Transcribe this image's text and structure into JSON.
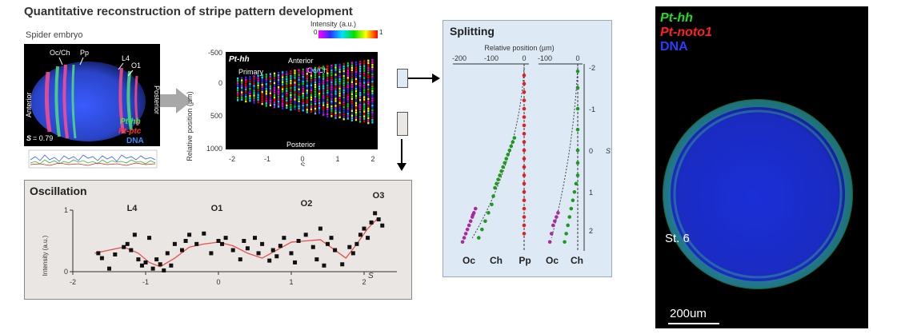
{
  "figure": {
    "title": "Quantitative reconstruction of stripe pattern development"
  },
  "embryo": {
    "label": "Spider embryo",
    "labels": {
      "occh": "Oc/Ch",
      "pp": "Pp",
      "l4": "L4",
      "o1": "O1",
      "anterior": "Anterior",
      "posterior": "Posterior",
      "s_value": "= 0.79",
      "s_symbol": "S"
    },
    "legend": {
      "hh": "Pt-hh",
      "ptc": "Pt-ptc",
      "dna": "DNA"
    }
  },
  "colorbar": {
    "label": "Intensity (a.u.)",
    "min": "0",
    "max": "1"
  },
  "gradient": {
    "label_gene": "Pt-hh",
    "label_primary": "Primary",
    "label_anterior": "Anterior",
    "label_occh": "Oc/Ch",
    "label_posterior": "Posterior",
    "ylabel": "Relative position (µm)",
    "xlabel": "S",
    "yticks": [
      "-500",
      "0",
      "500",
      "1000"
    ],
    "xticks": [
      "-2",
      "-1",
      "0",
      "1",
      "2"
    ]
  },
  "splitting": {
    "title": "Splitting",
    "xlabel": "Relative position (µm)",
    "xticks_left": [
      "-200",
      "-100",
      "0"
    ],
    "xticks_right": [
      "-100",
      "0"
    ],
    "yticks": [
      "-2",
      "-1",
      "0",
      "1",
      "2"
    ],
    "ylabel": "S",
    "bottom_labels_left": [
      "Oc",
      "Ch",
      "Pp"
    ],
    "bottom_labels_right": [
      "Oc",
      "Ch"
    ]
  },
  "oscillation": {
    "title": "Oscillation",
    "ylabel": "Intensity (a.u.)",
    "xlabel": "S",
    "yticks": [
      "0",
      "1"
    ],
    "xticks": [
      "-2",
      "-1",
      "0",
      "1",
      "2"
    ],
    "peak_labels": [
      "L4",
      "O1",
      "O2",
      "O3"
    ]
  },
  "photo": {
    "legend": {
      "hh": "Pt-hh",
      "noto": "Pt-noto1",
      "dna": "DNA"
    },
    "stage": "St. 6",
    "scalebar": "200um"
  },
  "colors": {
    "green": "#22dd22",
    "red": "#ff2020",
    "blue": "#2a3cff",
    "magenta": "#aa2a9c",
    "point_green": "#1f9a1f",
    "point_red": "#e02020",
    "fit_line": "#e8504a"
  },
  "chart_data": [
    {
      "type": "scatter",
      "title": "Oscillation",
      "xlabel": "S",
      "ylabel": "Intensity (a.u.)",
      "xlim": [
        -2,
        2.3
      ],
      "ylim": [
        0,
        1
      ],
      "series": [
        {
          "x": [
            -1.65,
            -1.6,
            -1.5,
            -1.42,
            -1.3,
            -1.25,
            -1.2,
            -1.15,
            -1.1,
            -1.05,
            -1.0,
            -0.95,
            -0.9,
            -0.85,
            -0.8,
            -0.75,
            -0.7,
            -0.65,
            -0.6,
            -0.5,
            -0.45,
            -0.4,
            -0.3,
            -0.2,
            -0.1,
            0.0,
            0.05,
            0.1,
            0.2,
            0.3,
            0.35,
            0.4,
            0.5,
            0.55,
            0.6,
            0.7,
            0.75,
            0.8,
            0.85,
            0.9,
            1.0,
            1.05,
            1.1,
            1.2,
            1.3,
            1.35,
            1.4,
            1.45,
            1.5,
            1.55,
            1.6,
            1.7,
            1.8,
            1.85,
            1.9,
            1.95,
            2.0,
            2.05,
            2.1,
            2.15,
            2.2,
            2.25
          ],
          "y": [
            0.3,
            0.22,
            0.05,
            0.28,
            0.4,
            0.45,
            0.35,
            0.6,
            0.2,
            0.1,
            0.15,
            0.55,
            0.05,
            0.2,
            0.12,
            0.02,
            0.3,
            0.1,
            0.45,
            0.35,
            0.5,
            0.6,
            0.45,
            0.62,
            0.3,
            0.5,
            0.45,
            0.55,
            0.35,
            0.2,
            0.5,
            0.38,
            0.55,
            0.3,
            0.45,
            0.18,
            0.35,
            0.25,
            0.42,
            0.55,
            0.3,
            0.15,
            0.5,
            0.6,
            0.4,
            0.2,
            0.7,
            0.1,
            0.45,
            0.55,
            0.35,
            0.12,
            0.4,
            0.3,
            0.45,
            0.6,
            0.7,
            0.55,
            0.8,
            0.95,
            0.85,
            0.75
          ]
        }
      ],
      "fit_line": {
        "x": [
          -1.7,
          -1.5,
          -1.3,
          -1.1,
          -0.95,
          -0.8,
          -0.6,
          -0.4,
          -0.2,
          0.0,
          0.2,
          0.4,
          0.6,
          0.8,
          1.0,
          1.2,
          1.4,
          1.6,
          1.75,
          1.9,
          2.05,
          2.2
        ],
        "y": [
          0.3,
          0.35,
          0.4,
          0.3,
          0.15,
          0.08,
          0.22,
          0.4,
          0.45,
          0.48,
          0.42,
          0.3,
          0.22,
          0.35,
          0.48,
          0.5,
          0.52,
          0.35,
          0.22,
          0.45,
          0.7,
          0.88
        ]
      }
    },
    {
      "type": "scatter",
      "title": "Splitting",
      "xlabel": "Relative position (µm)",
      "ylabel": "S",
      "ylim": [
        -2,
        2.3
      ],
      "panels": [
        {
          "xlim": [
            -200,
            0
          ],
          "series": [
            {
              "name": "Oc",
              "x": [
                -190,
                -185,
                -180,
                -175,
                -170,
                -165,
                -160,
                -158,
                -155,
                -150
              ],
              "y": [
                2.2,
                2.1,
                2.0,
                1.9,
                1.8,
                1.7,
                1.6,
                1.55,
                1.5,
                1.4
              ]
            },
            {
              "name": "Ch",
              "x": [
                -140,
                -130,
                -120,
                -110,
                -100,
                -95,
                -90,
                -85,
                -80,
                -75,
                -70,
                -65,
                -60,
                -55,
                -50,
                -45,
                -40,
                -35,
                -30
              ],
              "y": [
                2.1,
                1.9,
                1.7,
                1.5,
                1.3,
                1.1,
                0.9,
                0.8,
                0.7,
                0.6,
                0.5,
                0.4,
                0.3,
                0.2,
                0.1,
                0.0,
                -0.1,
                -0.2,
                -0.3
              ]
            },
            {
              "name": "Pp",
              "x": [
                0,
                0,
                0,
                0,
                0,
                0,
                0,
                0,
                0,
                0,
                0,
                0,
                0,
                0,
                0,
                0,
                0,
                0,
                0,
                0
              ],
              "y": [
                -1.8,
                -1.6,
                -1.4,
                -1.2,
                -1.0,
                -0.8,
                -0.6,
                -0.4,
                -0.2,
                0.0,
                0.2,
                0.4,
                0.6,
                0.8,
                1.0,
                1.2,
                1.4,
                1.6,
                1.8,
                2.0
              ]
            }
          ]
        },
        {
          "xlim": [
            -100,
            0
          ],
          "series": [
            {
              "name": "Oc",
              "x": [
                -85,
                -80,
                -75,
                -70,
                -65,
                -60
              ],
              "y": [
                2.2,
                2.0,
                1.8,
                1.7,
                1.6,
                1.5
              ]
            },
            {
              "name": "Ch",
              "x": [
                -40,
                -35,
                -30,
                -25,
                -20,
                -15,
                -10,
                -5,
                0,
                0,
                0,
                0,
                0,
                0,
                0
              ],
              "y": [
                2.2,
                2.0,
                1.8,
                1.6,
                1.4,
                1.2,
                1.0,
                0.8,
                0.6,
                0.3,
                0.0,
                -0.5,
                -1.0,
                -1.5,
                -1.9
              ]
            }
          ]
        }
      ]
    }
  ]
}
